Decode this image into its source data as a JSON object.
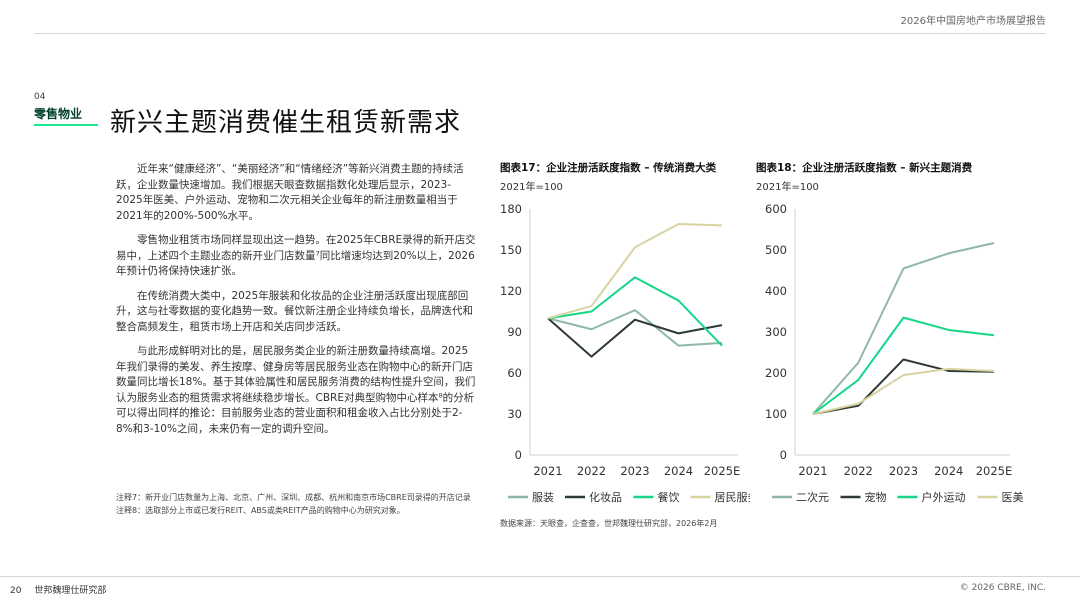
{
  "header": {
    "report_title": "2026年中国房地产市场展望报告"
  },
  "section": {
    "number": "04",
    "name": "零售物业"
  },
  "page_title": "新兴主题消费催生租赁新需求",
  "paragraphs": [
    "近年来“健康经济”、“美丽经济”和“情绪经济”等新兴消费主题的持续活跃，企业数量快速增加。我们根据天眼查数据指数化处理后显示，2023-2025年医美、户外运动、宠物和二次元相关企业每年的新注册数量相当于2021年的200%-500%水平。",
    "零售物业租赁市场同样显现出这一趋势。在2025年CBRE录得的新开店交易中，上述四个主题业态的新开业门店数量⁷同比增速均达到20%以上，2026年预计仍将保持快速扩张。",
    "在传统消费大类中，2025年服装和化妆品的企业注册活跃度出现底部回升，这与社零数据的变化趋势一致。餐饮新注册企业持续负增长，品牌迭代和整合高频发生，租赁市场上开店和关店同步活跃。",
    "与此形成鲜明对比的是，居民服务类企业的新注册数量持续高增。2025年我们录得的美发、养生按摩、健身房等居民服务业态在购物中心的新开门店数量同比增长18%。基于其体验属性和居民服务消费的结构性提升空间，我们认为服务业态的租赁需求将继续稳步增长。CBRE对典型购物中心样本⁸的分析可以得出同样的推论：目前服务业态的营业面积和租金收入占比分别处于2-8%和3-10%之间，未来仍有一定的调升空间。"
  ],
  "notes": [
    "注释7：新开业门店数量为上海、北京、广州、深圳、成都、杭州和南京市场CBRE司录得的开店记录",
    "注释8：选取部分上市或已发行REIT、ABS或类REIT产品的购物中心为研究对象。"
  ],
  "source": "数据来源：天眼查，企查查，世邦魏理仕研究部，2026年2月",
  "footer": {
    "page_number": "20",
    "org": "世邦魏理仕研究部",
    "copyright": "© 2026 CBRE, INC."
  },
  "chart_data": [
    {
      "type": "line",
      "title": "图表17：企业注册活跃度指数 – 传统消费大类",
      "subtitle": "2021年=100",
      "x": [
        "2021",
        "2022",
        "2023",
        "2024",
        "2025E"
      ],
      "ylim": [
        0,
        180
      ],
      "yticks": [
        0,
        30,
        60,
        90,
        120,
        150,
        180
      ],
      "grid": false,
      "legend_position": "bottom",
      "series": [
        {
          "name": "服装",
          "color": "#8fb7a6",
          "values": [
            100,
            92,
            106,
            80,
            82
          ]
        },
        {
          "name": "化妆品",
          "color": "#2e3a35",
          "values": [
            100,
            72,
            99,
            89,
            95
          ]
        },
        {
          "name": "餐饮",
          "color": "#17d68a",
          "values": [
            100,
            105,
            130,
            113,
            80
          ]
        },
        {
          "name": "居民服务",
          "color": "#d9d3a0",
          "values": [
            100,
            109,
            152,
            169,
            168
          ]
        }
      ]
    },
    {
      "type": "line",
      "title": "图表18：企业注册活跃度指数 – 新兴主题消费",
      "subtitle": "2021年=100",
      "x": [
        "2021",
        "2022",
        "2023",
        "2024",
        "2025E"
      ],
      "ylim": [
        0,
        600
      ],
      "yticks": [
        0,
        100,
        200,
        300,
        400,
        500,
        600
      ],
      "grid": false,
      "legend_position": "bottom",
      "series": [
        {
          "name": "二次元",
          "color": "#8fb7a6",
          "values": [
            100,
            225,
            455,
            492,
            517
          ]
        },
        {
          "name": "宠物",
          "color": "#2e3a35",
          "values": [
            100,
            120,
            233,
            205,
            203
          ]
        },
        {
          "name": "户外运动",
          "color": "#17d68a",
          "values": [
            100,
            183,
            335,
            305,
            292
          ]
        },
        {
          "name": "医美",
          "color": "#d9d3a0",
          "values": [
            100,
            125,
            195,
            210,
            205
          ]
        }
      ]
    }
  ]
}
